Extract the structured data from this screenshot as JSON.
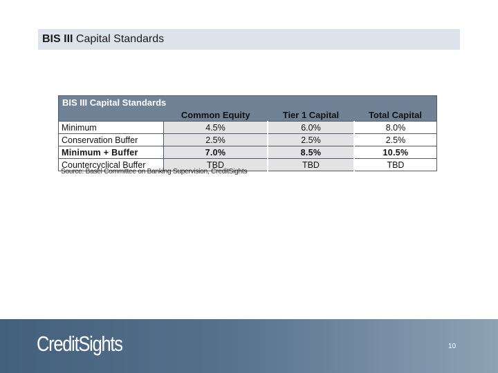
{
  "slide": {
    "title_bold": "BIS III",
    "title_rest": " Capital Standards"
  },
  "table": {
    "title": "BIS III Capital Standards",
    "columns": [
      "Common Equity",
      "Tier 1 Capital",
      "Total Capital"
    ],
    "rows": [
      {
        "label": "Minimum",
        "values": [
          "4.5%",
          "6.0%",
          "8.0%"
        ],
        "bold": false
      },
      {
        "label": "Conservation Buffer",
        "values": [
          "2.5%",
          "2.5%",
          "2.5%"
        ],
        "bold": false
      },
      {
        "label": "Minimum + Buffer",
        "values": [
          "7.0%",
          "8.5%",
          "10.5%"
        ],
        "bold": true
      },
      {
        "label": "Countercyclical Buffer",
        "values": [
          "TBD",
          "TBD",
          "TBD"
        ],
        "bold": false
      }
    ]
  },
  "source": "Source: Basel Committee on Banking Supervision, CreditSights",
  "footer": {
    "logo": "CreditSights",
    "page_number": "10"
  }
}
